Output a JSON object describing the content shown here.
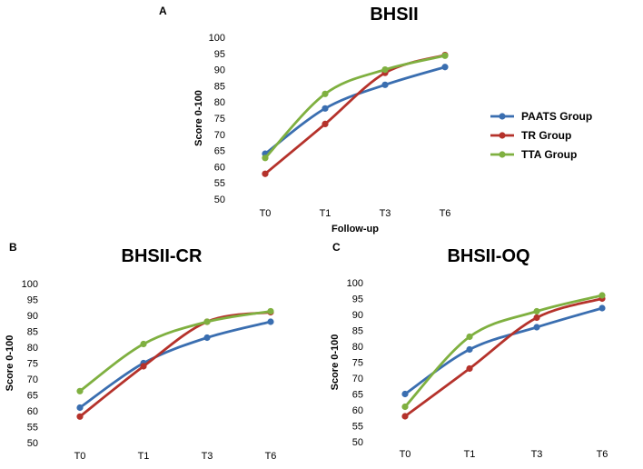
{
  "colors": {
    "PAATS Group": "#3a6eb0",
    "TR Group": "#b5322b",
    "TTA Group": "#7fb040"
  },
  "legend": {
    "entries": [
      "PAATS Group",
      "TR Group",
      "TTA Group"
    ],
    "position": "right of panel A"
  },
  "chart_data": [
    {
      "panel": "A",
      "type": "line",
      "title": "BHSII",
      "xlabel": "Follow-up",
      "ylabel": "Score 0-100",
      "categories": [
        "T0",
        "T1",
        "T3",
        "T6"
      ],
      "ylim": [
        50,
        100
      ],
      "yticks": [
        50,
        55,
        60,
        65,
        70,
        75,
        80,
        85,
        90,
        95,
        100
      ],
      "grid": false,
      "series": [
        {
          "name": "PAATS Group",
          "values": [
            64,
            78,
            85.3,
            90.8
          ]
        },
        {
          "name": "TR Group",
          "values": [
            57.8,
            73.2,
            89,
            94.5
          ]
        },
        {
          "name": "TTA Group",
          "values": [
            62.7,
            82.5,
            90,
            94.3
          ]
        }
      ]
    },
    {
      "panel": "B",
      "type": "line",
      "title": "BHSII-CR",
      "xlabel": "",
      "ylabel": "Score 0-100",
      "categories": [
        "T0",
        "T1",
        "T3",
        "T6"
      ],
      "ylim": [
        50,
        100
      ],
      "yticks": [
        50,
        55,
        60,
        65,
        70,
        75,
        80,
        85,
        90,
        95,
        100
      ],
      "grid": false,
      "series": [
        {
          "name": "PAATS Group",
          "values": [
            61,
            75,
            83,
            88
          ]
        },
        {
          "name": "TR Group",
          "values": [
            58.2,
            74,
            88,
            91
          ]
        },
        {
          "name": "TTA Group",
          "values": [
            66.2,
            81,
            88,
            91.3
          ]
        }
      ]
    },
    {
      "panel": "C",
      "type": "line",
      "title": "BHSII-OQ",
      "xlabel": "",
      "ylabel": "Score 0-100",
      "categories": [
        "T0",
        "T1",
        "T3",
        "T6"
      ],
      "ylim": [
        50,
        100
      ],
      "yticks": [
        50,
        55,
        60,
        65,
        70,
        75,
        80,
        85,
        90,
        95,
        100
      ],
      "grid": false,
      "series": [
        {
          "name": "PAATS Group",
          "values": [
            65,
            79,
            86,
            92
          ]
        },
        {
          "name": "TR Group",
          "values": [
            58,
            73,
            89,
            95
          ]
        },
        {
          "name": "TTA Group",
          "values": [
            61,
            83,
            91,
            96
          ]
        }
      ]
    }
  ]
}
